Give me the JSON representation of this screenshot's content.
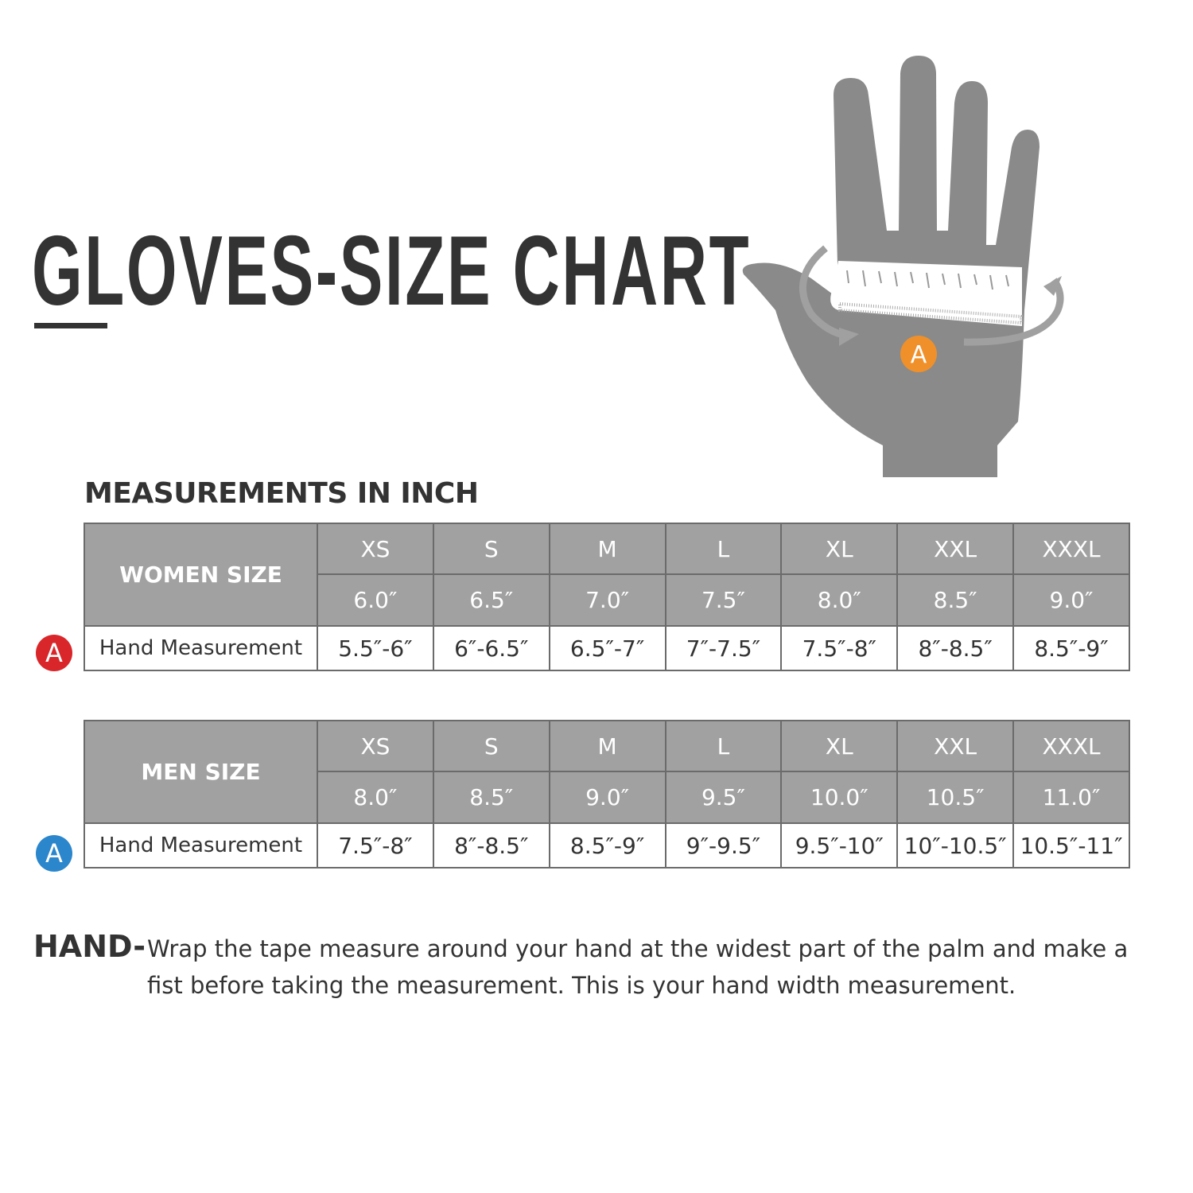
{
  "title": "GLOVES-SIZE CHART",
  "subtitle": "MEASUREMENTS IN INCH",
  "colors": {
    "header_gray": "#a1a1a1",
    "hand_gray": "#8a8a8a",
    "women_badge": "#d9262a",
    "men_badge": "#2b86cc",
    "hand_badge": "#f0902a"
  },
  "hand_illustration": {
    "badge": "A",
    "icon": "hand-with-tape-measure"
  },
  "women": {
    "label": "WOMEN SIZE",
    "badge": "A",
    "sizes": [
      "XS",
      "S",
      "M",
      "L",
      "XL",
      "XXL",
      "XXXL"
    ],
    "glove_sizes": [
      "6.0″",
      "6.5″",
      "7.0″",
      "7.5″",
      "8.0″",
      "8.5″",
      "9.0″"
    ],
    "row_label": "Hand Measurement",
    "hand_measurements": [
      "5.5″-6″",
      "6″-6.5″",
      "6.5″-7″",
      "7″-7.5″",
      "7.5″-8″",
      "8″-8.5″",
      "8.5″-9″"
    ]
  },
  "men": {
    "label": "MEN SIZE",
    "badge": "A",
    "sizes": [
      "XS",
      "S",
      "M",
      "L",
      "XL",
      "XXL",
      "XXXL"
    ],
    "glove_sizes": [
      "8.0″",
      "8.5″",
      "9.0″",
      "9.5″",
      "10.0″",
      "10.5″",
      "11.0″"
    ],
    "row_label": "Hand Measurement",
    "hand_measurements": [
      "7.5″-8″",
      "8″-8.5″",
      "8.5″-9″",
      "9″-9.5″",
      "9.5″-10″",
      "10″-10.5″",
      "10.5″-11″"
    ]
  },
  "instructions": {
    "label": "HAND-",
    "text": "Wrap the tape measure around your hand at the widest part of the palm and make a fist before taking the measurement. This is your hand width measurement."
  }
}
